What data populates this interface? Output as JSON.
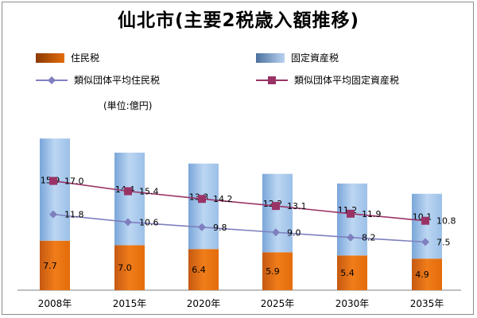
{
  "chart_data": {
    "type": "bar",
    "title": "仙北市(主要2税歳入額推移)",
    "unit_note": "(単位:億円)",
    "categories": [
      "2008年",
      "2015年",
      "2020年",
      "2025年",
      "2030年",
      "2035年"
    ],
    "bar_series": [
      {
        "name": "住民税",
        "values": [
          7.7,
          7.0,
          6.4,
          5.9,
          5.4,
          4.9
        ],
        "color": "#e46c0a"
      },
      {
        "name": "固定資産税",
        "values": [
          15.9,
          14.4,
          13.3,
          12.2,
          11.2,
          10.1
        ],
        "color": "#8db4e2"
      }
    ],
    "line_series": [
      {
        "name": "類似団体平均住民税",
        "values": [
          11.8,
          10.6,
          9.8,
          9.0,
          8.2,
          7.5
        ],
        "color": "#7f7fbf",
        "marker": "diamond"
      },
      {
        "name": "類似団体平均固定資産税",
        "values": [
          17.0,
          15.4,
          14.2,
          13.1,
          11.9,
          10.8
        ],
        "color": "#993366",
        "marker": "square"
      }
    ],
    "stacked": true,
    "ylim": [
      0,
      24
    ],
    "grid": false,
    "legend_position": "top"
  }
}
